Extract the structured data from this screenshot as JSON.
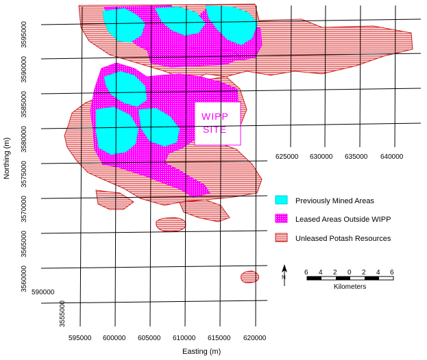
{
  "axes": {
    "xlabel": "Easting (m)",
    "ylabel": "Northing (m)",
    "x_ticks_bottom": [
      "595000",
      "600000",
      "605000",
      "610000",
      "615000",
      "620000"
    ],
    "x_ticks_upper": [
      "625000",
      "630000",
      "635000",
      "640000"
    ],
    "x_tick_left": "590000",
    "y_ticks": [
      "3595000",
      "3590000",
      "3585000",
      "3580000",
      "3575000",
      "3570000",
      "3565000",
      "3560000",
      "3555000"
    ]
  },
  "site_label": {
    "line1": "WIPP",
    "line2": "SITE"
  },
  "legend": [
    {
      "label": "Previously Mined Areas",
      "color": "#00ffff"
    },
    {
      "label": "Leased Areas Outside WIPP",
      "color": "#ff00ff"
    },
    {
      "label": "Unleased Potash Resources",
      "color": "#cc2222"
    }
  ],
  "scale_bar": {
    "ticks": [
      "6",
      "4",
      "2",
      "0",
      "2",
      "4",
      "6"
    ],
    "unit": "Kilometers"
  },
  "colors": {
    "mined": "#00ffff",
    "leased": "#ff00ff",
    "unleased": "#cc2222",
    "grid": "#000000"
  }
}
